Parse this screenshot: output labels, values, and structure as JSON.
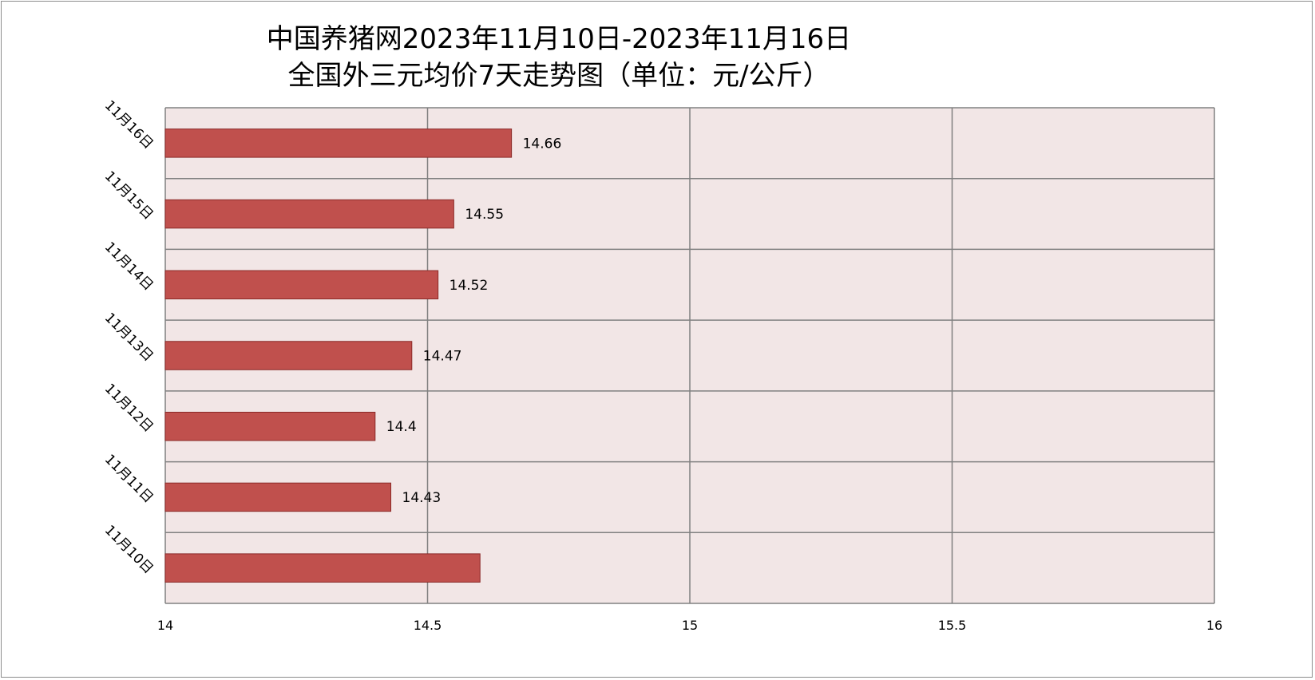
{
  "chart_data": {
    "type": "bar",
    "orientation": "horizontal",
    "title_line1": "中国养猪网2023年11月10日-2023年11月16日",
    "title_line2": "全国外三元均价7天走势图（单位：元/公斤）",
    "categories": [
      "11月10日",
      "11月11日",
      "11月12日",
      "11月13日",
      "11月14日",
      "11月15日",
      "11月16日"
    ],
    "values": [
      14.6,
      14.43,
      14.4,
      14.47,
      14.52,
      14.55,
      14.66
    ],
    "data_labels": [
      "",
      "14.43",
      "14.4",
      "14.47",
      "14.52",
      "14.55",
      "14.66"
    ],
    "xlim": [
      14,
      16
    ],
    "x_ticks": [
      "14",
      "14.5",
      "15",
      "15.5",
      "16"
    ],
    "x_tick_values": [
      14,
      14.5,
      15,
      15.5,
      16
    ],
    "grid": true,
    "legend": "none",
    "colors": {
      "bar_fill": "#c0504d",
      "bar_stroke": "#8b2a28",
      "plot_bg": "#f2e6e6",
      "grid": "#808080"
    }
  }
}
